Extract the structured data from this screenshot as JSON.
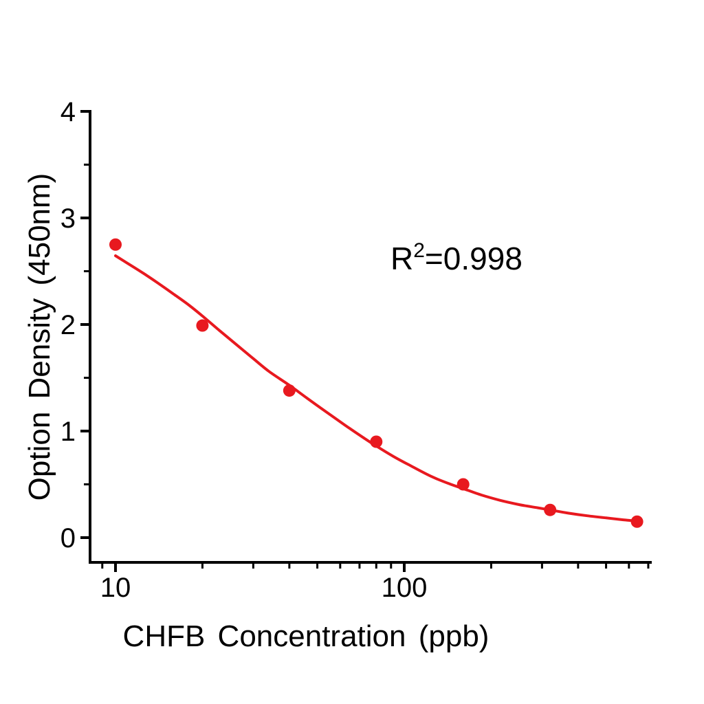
{
  "figure": {
    "background": "#ffffff",
    "plot_border": "none"
  },
  "chart_data": {
    "type": "scatter",
    "title": "",
    "xlabel": "CHFB Concentration (ppb)",
    "ylabel": "Option Density (450nm)",
    "x_scale": "log",
    "y_scale": "linear",
    "xlim": [
      8,
      730
    ],
    "ylim": [
      -0.23,
      4.02
    ],
    "grid": false,
    "legend_position": "none",
    "axis_color": "#000000",
    "accent_color": "#e8191f",
    "x_major_ticks": {
      "values": [
        10,
        100
      ],
      "labels": [
        "10",
        "100"
      ]
    },
    "x_minor_ticks": [
      8,
      9,
      20,
      30,
      40,
      50,
      60,
      70,
      80,
      90,
      200,
      300,
      400,
      500,
      600,
      700
    ],
    "y_major_ticks": {
      "values": [
        0,
        1,
        2,
        3,
        4
      ],
      "labels": [
        "0",
        "1",
        "2",
        "3",
        "4"
      ]
    },
    "y_minor_ticks": [
      0.5,
      1.5,
      2.5,
      3.5
    ],
    "series": [
      {
        "name": "standard-points",
        "type": "scatter",
        "marker": "circle",
        "color": "#e8191f",
        "x": [
          10,
          20,
          40,
          80,
          160,
          320,
          640
        ],
        "y": [
          2.75,
          1.99,
          1.38,
          0.9,
          0.5,
          0.26,
          0.15
        ]
      },
      {
        "name": "fit-curve",
        "type": "line",
        "color": "#e8191f",
        "x": [
          10,
          11,
          12.5,
          14,
          16,
          18,
          20,
          23,
          26,
          30,
          34,
          40,
          46,
          53,
          62,
          72,
          80,
          92,
          106,
          125,
          145,
          160,
          185,
          215,
          250,
          290,
          320,
          370,
          430,
          500,
          570,
          640
        ],
        "y": [
          2.645,
          2.575,
          2.48,
          2.39,
          2.28,
          2.18,
          2.08,
          1.94,
          1.82,
          1.68,
          1.56,
          1.43,
          1.31,
          1.19,
          1.06,
          0.94,
          0.86,
          0.76,
          0.67,
          0.57,
          0.5,
          0.46,
          0.4,
          0.35,
          0.31,
          0.28,
          0.26,
          0.23,
          0.205,
          0.185,
          0.168,
          0.155
        ]
      }
    ],
    "annotation": {
      "text": "R²=0.998",
      "base": "R",
      "superscript": "2",
      "suffix": "=0.998",
      "r_squared": 0.998
    }
  }
}
